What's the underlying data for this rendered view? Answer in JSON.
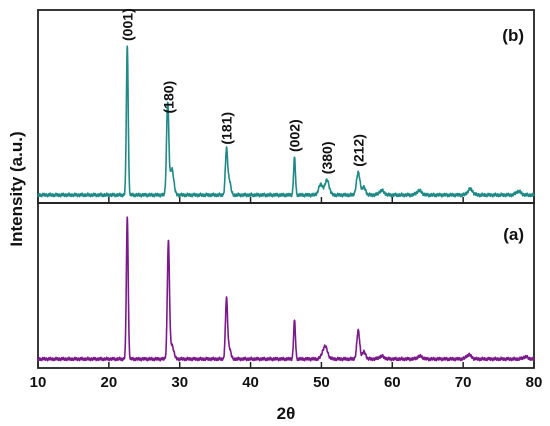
{
  "chart_data": {
    "type": "line",
    "xlabel": "2θ",
    "ylabel": "Intensity (a.u.)",
    "xlim": [
      10,
      80
    ],
    "xticks": [
      10,
      20,
      30,
      40,
      50,
      60,
      70,
      80
    ],
    "grid": false,
    "panels": [
      {
        "label": "(b)",
        "position": "top",
        "color": "#1f8a86",
        "baseline": 0.05,
        "peaks": [
          {
            "x": 22.6,
            "height": 1.0,
            "width": 0.13
          },
          {
            "x": 28.3,
            "height": 0.62,
            "width": 0.16
          },
          {
            "x": 28.9,
            "height": 0.18,
            "width": 0.25
          },
          {
            "x": 36.6,
            "height": 0.3,
            "width": 0.16
          },
          {
            "x": 37.0,
            "height": 0.1,
            "width": 0.2
          },
          {
            "x": 46.2,
            "height": 0.25,
            "width": 0.13
          },
          {
            "x": 49.9,
            "height": 0.07,
            "width": 0.3
          },
          {
            "x": 50.8,
            "height": 0.1,
            "width": 0.3
          },
          {
            "x": 55.2,
            "height": 0.15,
            "width": 0.25
          },
          {
            "x": 56.0,
            "height": 0.05,
            "width": 0.25
          },
          {
            "x": 58.5,
            "height": 0.03,
            "width": 0.35
          },
          {
            "x": 63.8,
            "height": 0.03,
            "width": 0.35
          },
          {
            "x": 71.0,
            "height": 0.04,
            "width": 0.35
          },
          {
            "x": 77.8,
            "height": 0.025,
            "width": 0.35
          }
        ],
        "annotations": [
          {
            "text": "(001)",
            "x": 22.6
          },
          {
            "text": "(180)",
            "x": 28.4
          },
          {
            "text": "(181)",
            "x": 36.6
          },
          {
            "text": "(002)",
            "x": 46.2
          },
          {
            "text": "(380)",
            "x": 50.8
          },
          {
            "text": "(212)",
            "x": 55.2
          }
        ]
      },
      {
        "label": "(a)",
        "position": "bottom",
        "color": "#7b1a8a",
        "baseline": 0.05,
        "peaks": [
          {
            "x": 22.6,
            "height": 1.0,
            "width": 0.13
          },
          {
            "x": 28.4,
            "height": 0.82,
            "width": 0.15
          },
          {
            "x": 28.9,
            "height": 0.1,
            "width": 0.25
          },
          {
            "x": 36.6,
            "height": 0.42,
            "width": 0.15
          },
          {
            "x": 37.0,
            "height": 0.08,
            "width": 0.2
          },
          {
            "x": 46.2,
            "height": 0.27,
            "width": 0.13
          },
          {
            "x": 50.5,
            "height": 0.09,
            "width": 0.35
          },
          {
            "x": 55.2,
            "height": 0.2,
            "width": 0.2
          },
          {
            "x": 56.0,
            "height": 0.05,
            "width": 0.25
          },
          {
            "x": 58.5,
            "height": 0.02,
            "width": 0.35
          },
          {
            "x": 63.9,
            "height": 0.02,
            "width": 0.35
          },
          {
            "x": 70.8,
            "height": 0.03,
            "width": 0.35
          },
          {
            "x": 78.8,
            "height": 0.015,
            "width": 0.35
          }
        ],
        "annotations": []
      }
    ]
  }
}
